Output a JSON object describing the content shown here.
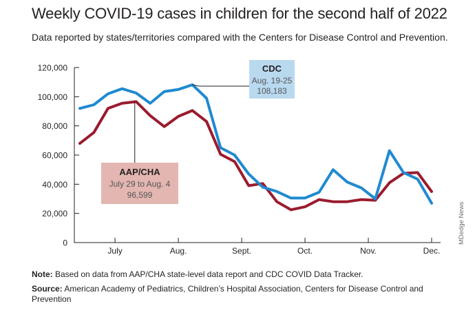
{
  "title": "Weekly COVID-19 cases in children for the second half of 2022",
  "subtitle": "Data reported by states/territories compared with the Centers for Disease Control and Prevention.",
  "note_label": "Note:",
  "note_text": " Based on data from AAP/CHA state-level data report and CDC COVID Data Tracker.",
  "source_label": "Source:",
  "source_text": " American Academy of Pediatrics, Children’s Hospital Association, Centers for Disease Control and Prevention",
  "credit": "MDedge News",
  "colors": {
    "cdc": "#1f8ad0",
    "aap": "#9b1b2e",
    "cdc_box": "#b9d9ef",
    "aap_box": "#e3b6b1"
  },
  "chart_data": {
    "type": "line",
    "title": "Weekly COVID-19 cases in children for the second half of 2022",
    "ylim": [
      0,
      120000
    ],
    "y_ticks": [
      "0",
      "20,000",
      "40,000",
      "60,000",
      "80,000",
      "100,000",
      "120,000"
    ],
    "y_tick_values": [
      0,
      20000,
      40000,
      60000,
      80000,
      100000,
      120000
    ],
    "x_tick_labels": [
      "July",
      "Aug.",
      "Sept.",
      "Oct.",
      "Nov.",
      "Dec."
    ],
    "x_tick_week_index": [
      2.5,
      7,
      11.5,
      16,
      20.5,
      25
    ],
    "grid": false,
    "series": [
      {
        "name": "CDC",
        "values": [
          92000,
          94500,
          102000,
          105500,
          102500,
          95500,
          103500,
          105000,
          108183,
          99000,
          65000,
          60000,
          47000,
          38000,
          35000,
          30500,
          30500,
          34500,
          50000,
          41500,
          37500,
          30000,
          63000,
          48000,
          43500,
          27000
        ]
      },
      {
        "name": "AAP/CHA",
        "values": [
          68000,
          75500,
          92000,
          95500,
          96599,
          87000,
          79500,
          86500,
          90500,
          83000,
          60500,
          55500,
          39000,
          40500,
          28000,
          22500,
          24500,
          29500,
          28000,
          28000,
          29500,
          29000,
          41000,
          47500,
          48000,
          35000
        ]
      }
    ],
    "annotations": [
      {
        "series": "CDC",
        "label": "CDC",
        "period": "Aug. 19-25",
        "value": "108,183",
        "week_index": 8
      },
      {
        "series": "AAP/CHA",
        "label": "AAP/CHA",
        "period": "July 29 to Aug. 4",
        "value": "96,599",
        "week_index": 4
      }
    ]
  }
}
